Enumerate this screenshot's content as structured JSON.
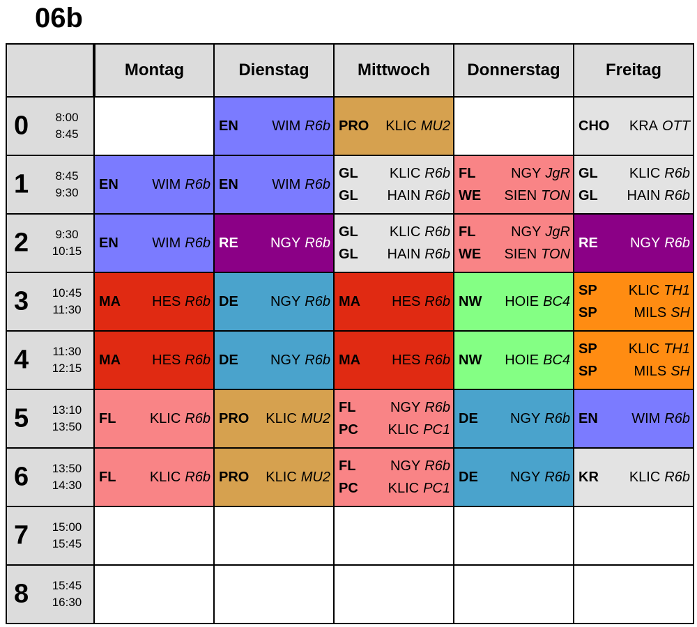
{
  "title": "06b",
  "days": [
    "Montag",
    "Dienstag",
    "Mittwoch",
    "Donnerstag",
    "Freitag"
  ],
  "colors": {
    "blue": "#7b7bff",
    "tan": "#d6a14f",
    "gray": "#e3e3e3",
    "pink": "#f98486",
    "purple": "#8b0086",
    "red": "#e02a12",
    "teal": "#4aa3cc",
    "green": "#84ff84",
    "orange": "#ff8c12",
    "empty": "#ffffff",
    "header": "#dcdcdc"
  },
  "periods": [
    {
      "num": "0",
      "start": "8:00",
      "end": "8:45",
      "cells": [
        {
          "color": "empty",
          "entries": []
        },
        {
          "color": "blue",
          "entries": [
            {
              "subject": "EN",
              "teacher": "WIM",
              "room": "R6b"
            }
          ]
        },
        {
          "color": "tan",
          "entries": [
            {
              "subject": "PRO",
              "teacher": "KLIC",
              "room": "MU2"
            }
          ]
        },
        {
          "color": "empty",
          "entries": []
        },
        {
          "color": "gray",
          "entries": [
            {
              "subject": "CHO",
              "teacher": "KRA",
              "room": "OTT"
            }
          ]
        }
      ]
    },
    {
      "num": "1",
      "start": "8:45",
      "end": "9:30",
      "cells": [
        {
          "color": "blue",
          "entries": [
            {
              "subject": "EN",
              "teacher": "WIM",
              "room": "R6b"
            }
          ]
        },
        {
          "color": "blue",
          "entries": [
            {
              "subject": "EN",
              "teacher": "WIM",
              "room": "R6b"
            }
          ]
        },
        {
          "color": "gray",
          "entries": [
            {
              "subject": "GL",
              "teacher": "KLIC",
              "room": "R6b"
            },
            {
              "subject": "GL",
              "teacher": "HAIN",
              "room": "R6b"
            }
          ]
        },
        {
          "color": "pink",
          "entries": [
            {
              "subject": "FL",
              "teacher": "NGY",
              "room": "JgR"
            },
            {
              "subject": "WE",
              "teacher": "SIEN",
              "room": "TON"
            }
          ]
        },
        {
          "color": "gray",
          "entries": [
            {
              "subject": "GL",
              "teacher": "KLIC",
              "room": "R6b"
            },
            {
              "subject": "GL",
              "teacher": "HAIN",
              "room": "R6b"
            }
          ]
        }
      ]
    },
    {
      "num": "2",
      "start": "9:30",
      "end": "10:15",
      "cells": [
        {
          "color": "blue",
          "entries": [
            {
              "subject": "EN",
              "teacher": "WIM",
              "room": "R6b"
            }
          ]
        },
        {
          "color": "purple",
          "entries": [
            {
              "subject": "RE",
              "teacher": "NGY",
              "room": "R6b"
            }
          ]
        },
        {
          "color": "gray",
          "entries": [
            {
              "subject": "GL",
              "teacher": "KLIC",
              "room": "R6b"
            },
            {
              "subject": "GL",
              "teacher": "HAIN",
              "room": "R6b"
            }
          ]
        },
        {
          "color": "pink",
          "entries": [
            {
              "subject": "FL",
              "teacher": "NGY",
              "room": "JgR"
            },
            {
              "subject": "WE",
              "teacher": "SIEN",
              "room": "TON"
            }
          ]
        },
        {
          "color": "purple",
          "entries": [
            {
              "subject": "RE",
              "teacher": "NGY",
              "room": "R6b"
            }
          ]
        }
      ]
    },
    {
      "num": "3",
      "start": "10:45",
      "end": "11:30",
      "cells": [
        {
          "color": "red",
          "entries": [
            {
              "subject": "MA",
              "teacher": "HES",
              "room": "R6b"
            }
          ]
        },
        {
          "color": "teal",
          "entries": [
            {
              "subject": "DE",
              "teacher": "NGY",
              "room": "R6b"
            }
          ]
        },
        {
          "color": "red",
          "entries": [
            {
              "subject": "MA",
              "teacher": "HES",
              "room": "R6b"
            }
          ]
        },
        {
          "color": "green",
          "entries": [
            {
              "subject": "NW",
              "teacher": "HOIE",
              "room": "BC4"
            }
          ]
        },
        {
          "color": "orange",
          "entries": [
            {
              "subject": "SP",
              "teacher": "KLIC",
              "room": "TH1"
            },
            {
              "subject": "SP",
              "teacher": "MILS",
              "room": "SH"
            }
          ]
        }
      ]
    },
    {
      "num": "4",
      "start": "11:30",
      "end": "12:15",
      "cells": [
        {
          "color": "red",
          "entries": [
            {
              "subject": "MA",
              "teacher": "HES",
              "room": "R6b"
            }
          ]
        },
        {
          "color": "teal",
          "entries": [
            {
              "subject": "DE",
              "teacher": "NGY",
              "room": "R6b"
            }
          ]
        },
        {
          "color": "red",
          "entries": [
            {
              "subject": "MA",
              "teacher": "HES",
              "room": "R6b"
            }
          ]
        },
        {
          "color": "green",
          "entries": [
            {
              "subject": "NW",
              "teacher": "HOIE",
              "room": "BC4"
            }
          ]
        },
        {
          "color": "orange",
          "entries": [
            {
              "subject": "SP",
              "teacher": "KLIC",
              "room": "TH1"
            },
            {
              "subject": "SP",
              "teacher": "MILS",
              "room": "SH"
            }
          ]
        }
      ]
    },
    {
      "num": "5",
      "start": "13:10",
      "end": "13:50",
      "cells": [
        {
          "color": "pink",
          "entries": [
            {
              "subject": "FL",
              "teacher": "KLIC",
              "room": "R6b"
            }
          ]
        },
        {
          "color": "tan",
          "entries": [
            {
              "subject": "PRO",
              "teacher": "KLIC",
              "room": "MU2"
            }
          ]
        },
        {
          "color": "pink",
          "entries": [
            {
              "subject": "FL",
              "teacher": "NGY",
              "room": "R6b"
            },
            {
              "subject": "PC",
              "teacher": "KLIC",
              "room": "PC1"
            }
          ]
        },
        {
          "color": "teal",
          "entries": [
            {
              "subject": "DE",
              "teacher": "NGY",
              "room": "R6b"
            }
          ]
        },
        {
          "color": "blue",
          "entries": [
            {
              "subject": "EN",
              "teacher": "WIM",
              "room": "R6b"
            }
          ]
        }
      ]
    },
    {
      "num": "6",
      "start": "13:50",
      "end": "14:30",
      "cells": [
        {
          "color": "pink",
          "entries": [
            {
              "subject": "FL",
              "teacher": "KLIC",
              "room": "R6b"
            }
          ]
        },
        {
          "color": "tan",
          "entries": [
            {
              "subject": "PRO",
              "teacher": "KLIC",
              "room": "MU2"
            }
          ]
        },
        {
          "color": "pink",
          "entries": [
            {
              "subject": "FL",
              "teacher": "NGY",
              "room": "R6b"
            },
            {
              "subject": "PC",
              "teacher": "KLIC",
              "room": "PC1"
            }
          ]
        },
        {
          "color": "teal",
          "entries": [
            {
              "subject": "DE",
              "teacher": "NGY",
              "room": "R6b"
            }
          ]
        },
        {
          "color": "gray",
          "entries": [
            {
              "subject": "KR",
              "teacher": "KLIC",
              "room": "R6b"
            }
          ]
        }
      ]
    },
    {
      "num": "7",
      "start": "15:00",
      "end": "15:45",
      "cells": [
        {
          "color": "empty",
          "entries": []
        },
        {
          "color": "empty",
          "entries": []
        },
        {
          "color": "empty",
          "entries": []
        },
        {
          "color": "empty",
          "entries": []
        },
        {
          "color": "empty",
          "entries": []
        }
      ]
    },
    {
      "num": "8",
      "start": "15:45",
      "end": "16:30",
      "cells": [
        {
          "color": "empty",
          "entries": []
        },
        {
          "color": "empty",
          "entries": []
        },
        {
          "color": "empty",
          "entries": []
        },
        {
          "color": "empty",
          "entries": []
        },
        {
          "color": "empty",
          "entries": []
        }
      ]
    }
  ]
}
